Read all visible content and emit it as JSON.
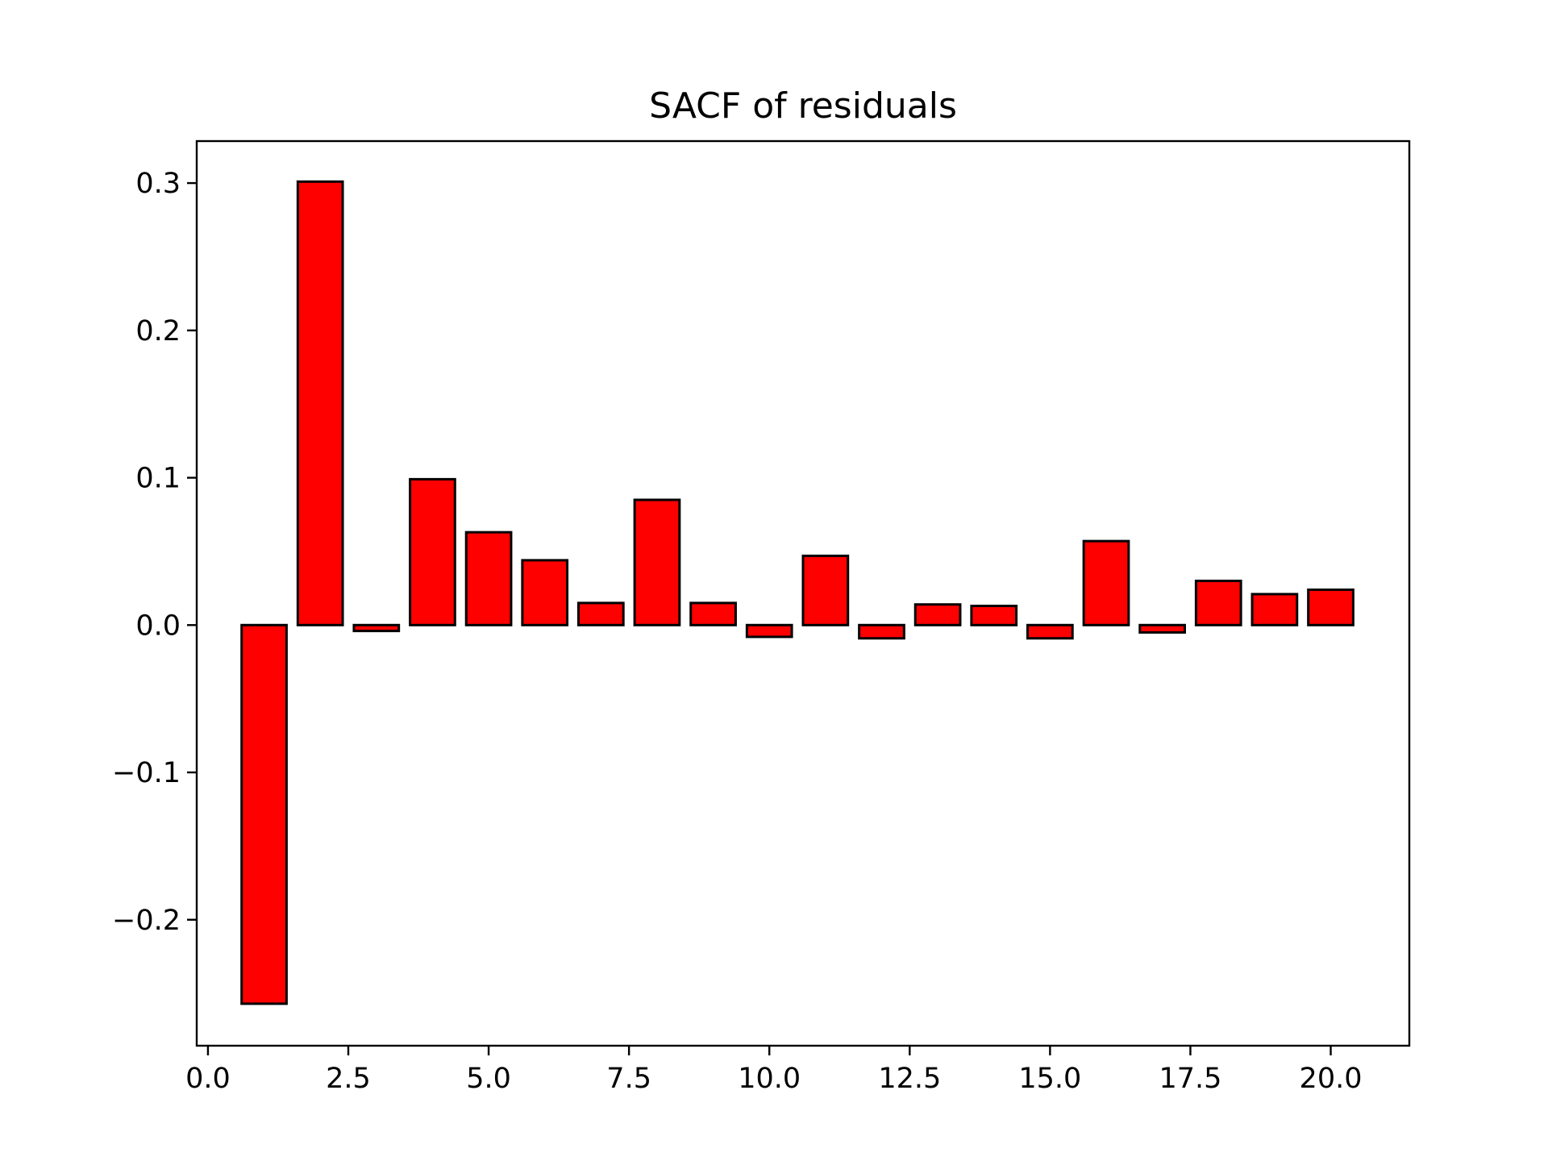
{
  "chart_data": {
    "type": "bar",
    "title": "SACF of residuals",
    "xlabel": "",
    "ylabel": "",
    "x": [
      1,
      2,
      3,
      4,
      5,
      6,
      7,
      8,
      9,
      10,
      11,
      12,
      13,
      14,
      15,
      16,
      17,
      18,
      19,
      20
    ],
    "values": [
      -0.257,
      0.301,
      -0.004,
      0.099,
      0.063,
      0.044,
      0.015,
      0.085,
      0.015,
      -0.008,
      0.047,
      -0.009,
      0.014,
      0.013,
      -0.009,
      0.057,
      -0.005,
      0.03,
      0.021,
      0.024
    ],
    "bar_color": "#ff0000",
    "edge_color": "#000000",
    "xlim": [
      -0.2,
      21.4
    ],
    "ylim": [
      -0.2855,
      0.3285
    ],
    "xticks": [
      0,
      2.5,
      5,
      7.5,
      10,
      12.5,
      15,
      17.5,
      20
    ],
    "xtick_labels": [
      "0.0",
      "2.5",
      "5.0",
      "7.5",
      "10.0",
      "12.5",
      "15.0",
      "17.5",
      "20.0"
    ],
    "yticks": [
      -0.2,
      -0.1,
      0,
      0.1,
      0.2,
      0.3
    ],
    "ytick_labels": [
      "−0.2",
      "−0.1",
      "0.0",
      "0.1",
      "0.2",
      "0.3"
    ],
    "grid": false,
    "legend": "none"
  }
}
